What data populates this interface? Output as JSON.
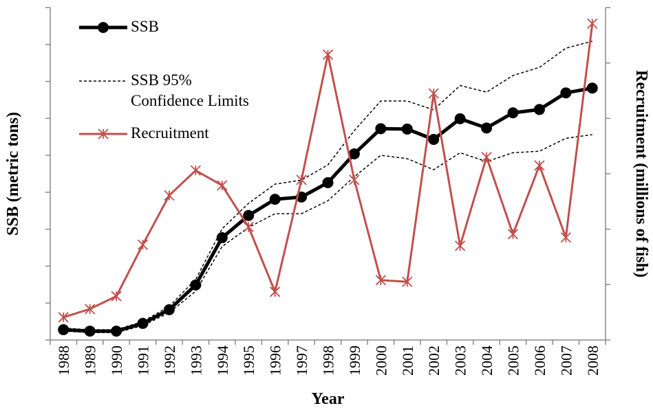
{
  "chart_data": {
    "type": "line",
    "x_label": "Year",
    "y_label": "SSB (metric tons)",
    "y2_label": "Recruitment (millions of fish)",
    "categories": [
      "1988",
      "1989",
      "1990",
      "1991",
      "1992",
      "1993",
      "1994",
      "1995",
      "1996",
      "1997",
      "1998",
      "1999",
      "2000",
      "2001",
      "2002",
      "2003",
      "2004",
      "2005",
      "2006",
      "2007",
      "2008"
    ],
    "ylim": [
      0,
      9
    ],
    "yticks": [
      0,
      1,
      2,
      3,
      4,
      5,
      6,
      7,
      8,
      9
    ],
    "y2lim": [
      0,
      6
    ],
    "y2ticks": [
      0,
      1,
      2,
      3,
      4,
      5,
      6
    ],
    "legend": "upper-left",
    "series": [
      {
        "name": "SSB",
        "color": "#000000",
        "marker": "circle",
        "values": [
          0.28,
          0.24,
          0.24,
          0.45,
          0.82,
          1.49,
          2.77,
          3.37,
          3.81,
          3.87,
          4.26,
          5.04,
          5.72,
          5.71,
          5.43,
          5.99,
          5.74,
          6.15,
          6.24,
          6.69,
          6.82
        ]
      },
      {
        "name": "SSB 95% Confidence Limits",
        "color": "#000000",
        "dashed": true,
        "upper": [
          0.32,
          0.28,
          0.28,
          0.5,
          0.91,
          1.64,
          3.01,
          3.7,
          4.22,
          4.33,
          4.74,
          5.67,
          6.47,
          6.47,
          6.23,
          6.89,
          6.71,
          7.16,
          7.38,
          7.9,
          8.09
        ],
        "lower": [
          0.24,
          0.2,
          0.2,
          0.39,
          0.74,
          1.32,
          2.53,
          3.05,
          3.42,
          3.42,
          3.77,
          4.42,
          5.0,
          4.91,
          4.61,
          5.07,
          4.83,
          5.07,
          5.11,
          5.46,
          5.56
        ]
      },
      {
        "name": "Recruitment",
        "color": "#c0504d",
        "marker": "asterisk",
        "axis": "y2",
        "values": [
          0.41,
          0.56,
          0.79,
          1.72,
          2.61,
          3.06,
          2.79,
          2.04,
          0.87,
          2.89,
          5.15,
          2.89,
          1.08,
          1.05,
          4.45,
          1.7,
          3.3,
          1.91,
          3.15,
          1.85,
          5.71
        ]
      }
    ]
  }
}
